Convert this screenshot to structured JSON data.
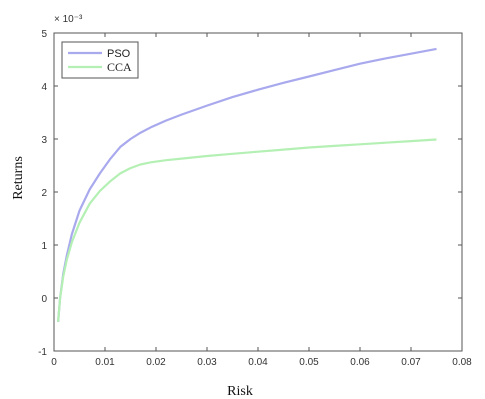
{
  "chart_data": {
    "type": "line",
    "title": "",
    "xlabel": "Risk",
    "ylabel": "Returns",
    "y_multiplier": "× 10⁻³",
    "xlim": [
      0,
      0.08
    ],
    "ylim": [
      -1,
      5
    ],
    "x_ticks": [
      "0",
      "0.01",
      "0.02",
      "0.03",
      "0.04",
      "0.05",
      "0.06",
      "0.07",
      "0.08"
    ],
    "y_ticks": [
      "-1",
      "0",
      "1",
      "2",
      "3",
      "4",
      "5"
    ],
    "grid": false,
    "legend_position": "top-left",
    "series": [
      {
        "name": "PSO",
        "color": "#a9a9ee",
        "x": [
          0.0008,
          0.0012,
          0.0018,
          0.0025,
          0.0035,
          0.005,
          0.007,
          0.009,
          0.011,
          0.013,
          0.015,
          0.017,
          0.019,
          0.022,
          0.025,
          0.03,
          0.035,
          0.04,
          0.045,
          0.05,
          0.055,
          0.06,
          0.065,
          0.07,
          0.075
        ],
        "y": [
          -0.45,
          0.0,
          0.45,
          0.8,
          1.2,
          1.65,
          2.05,
          2.35,
          2.62,
          2.85,
          3.0,
          3.12,
          3.22,
          3.35,
          3.46,
          3.63,
          3.79,
          3.93,
          4.06,
          4.18,
          4.3,
          4.42,
          4.52,
          4.61,
          4.7
        ]
      },
      {
        "name": "CCA",
        "color": "#b4f0b4",
        "x": [
          0.0008,
          0.0012,
          0.0018,
          0.0025,
          0.0035,
          0.005,
          0.007,
          0.009,
          0.011,
          0.013,
          0.015,
          0.017,
          0.019,
          0.022,
          0.025,
          0.03,
          0.035,
          0.04,
          0.045,
          0.05,
          0.055,
          0.06,
          0.065,
          0.07,
          0.075
        ],
        "y": [
          -0.45,
          0.0,
          0.4,
          0.72,
          1.05,
          1.42,
          1.78,
          2.02,
          2.2,
          2.35,
          2.45,
          2.52,
          2.56,
          2.6,
          2.63,
          2.68,
          2.72,
          2.76,
          2.8,
          2.84,
          2.87,
          2.9,
          2.93,
          2.96,
          2.99
        ]
      }
    ]
  }
}
